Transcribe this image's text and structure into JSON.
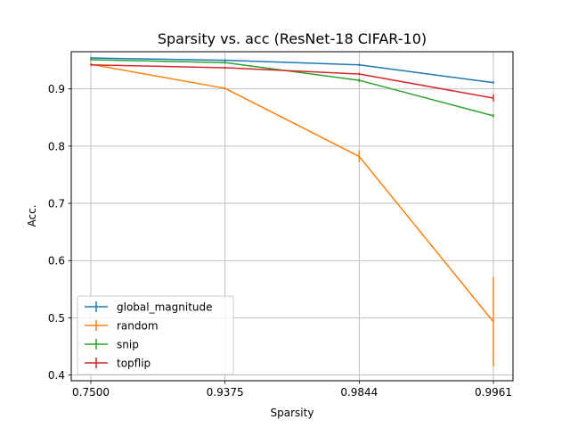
{
  "chart_data": {
    "type": "line",
    "title": "Sparsity vs. acc (ResNet-18 CIFAR-10)",
    "xlabel": "Sparsity",
    "ylabel": "Acc.",
    "categories": [
      "0.7500",
      "0.9375",
      "0.9844",
      "0.9961"
    ],
    "ylim": [
      0.39,
      0.965
    ],
    "yticks": [
      0.4,
      0.5,
      0.6,
      0.7,
      0.8,
      0.9
    ],
    "ytick_labels": [
      "0.4",
      "0.5",
      "0.6",
      "0.7",
      "0.8",
      "0.9"
    ],
    "grid": true,
    "legend_position": "lower-left",
    "series": [
      {
        "name": "global_magnitude",
        "color": "#1f77b4",
        "values": [
          0.954,
          0.95,
          0.942,
          0.911
        ],
        "errors": [
          0.002,
          0.002,
          0.002,
          0.002
        ]
      },
      {
        "name": "random",
        "color": "#ff7f0e",
        "values": [
          0.943,
          0.901,
          0.782,
          0.493
        ],
        "errors": [
          0.002,
          0.002,
          0.01,
          0.078
        ]
      },
      {
        "name": "snip",
        "color": "#2ca02c",
        "values": [
          0.951,
          0.946,
          0.915,
          0.853
        ],
        "errors": [
          0.002,
          0.002,
          0.003,
          0.003
        ]
      },
      {
        "name": "topflip",
        "color": "#d62728",
        "values": [
          0.942,
          0.937,
          0.926,
          0.884
        ],
        "errors": [
          0.002,
          0.002,
          0.002,
          0.006
        ]
      }
    ]
  }
}
